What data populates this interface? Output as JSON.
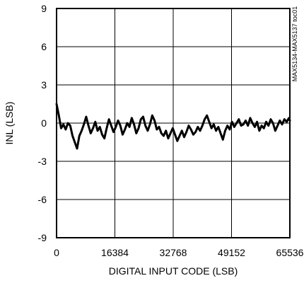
{
  "chart_data": {
    "type": "line",
    "title": "",
    "xlabel": "DIGITAL INPUT CODE (LSB)",
    "ylabel": "INL (LSB)",
    "side_label": "MAX5134-MAX5137 toc01",
    "xlim": [
      0,
      65536
    ],
    "ylim": [
      -9,
      9
    ],
    "x_ticks": [
      0,
      16384,
      32768,
      49152,
      65536
    ],
    "x_tick_labels": [
      "0",
      "16384",
      "32768",
      "49152",
      "65536"
    ],
    "y_ticks": [
      9,
      6,
      3,
      0,
      -3,
      -6,
      -9
    ],
    "y_tick_labels": [
      "9",
      "6",
      "3",
      "0",
      "-3",
      "-6",
      "-9"
    ],
    "grid": true,
    "line_color": "#000000",
    "grid_color": "#000000",
    "series": [
      {
        "x": [
          0,
          640,
          1280,
          1920,
          2560,
          3200,
          3840,
          4480,
          5120,
          5760,
          6400,
          7040,
          7680,
          8320,
          8960,
          9600,
          10240,
          10880,
          11520,
          12160,
          12800,
          13440,
          14080,
          14720,
          15360,
          16000,
          16640,
          17280,
          17920,
          18560,
          19200,
          19840,
          20480,
          21120,
          21760,
          22400,
          23040,
          23680,
          24320,
          24960,
          25600,
          26240,
          26880,
          27520,
          28160,
          28800,
          29440,
          30080,
          30720,
          31360,
          32000,
          32640,
          33280,
          33920,
          34560,
          35200,
          35840,
          36480,
          37120,
          37760,
          38400,
          39040,
          39680,
          40320,
          40960,
          41600,
          42240,
          42880,
          43520,
          44160,
          44800,
          45440,
          46080,
          46720,
          47360,
          48000,
          48640,
          49280,
          49920,
          50560,
          51200,
          51840,
          52480,
          53120,
          53760,
          54400,
          55040,
          55680,
          56320,
          56960,
          57600,
          58240,
          58880,
          59520,
          60160,
          60800,
          61440,
          62080,
          62720,
          63360,
          64000,
          64640,
          65280,
          65536
        ],
        "values": [
          1.5,
          0.6,
          -0.4,
          -0.1,
          -0.5,
          0.0,
          -0.2,
          -1.0,
          -1.5,
          -2.0,
          -1.0,
          -0.6,
          -0.1,
          0.5,
          -0.2,
          -0.8,
          -0.4,
          0.1,
          -0.6,
          -0.3,
          -0.9,
          -1.2,
          -0.4,
          0.3,
          -0.2,
          -0.7,
          -0.3,
          0.2,
          -0.2,
          -0.9,
          -0.5,
          0.0,
          -0.3,
          0.4,
          -0.1,
          -0.8,
          -0.4,
          0.3,
          0.5,
          -0.2,
          -0.6,
          -0.1,
          0.6,
          0.2,
          -0.5,
          -0.3,
          -0.8,
          -1.0,
          -0.6,
          -1.2,
          -0.8,
          -0.4,
          -0.9,
          -1.4,
          -1.0,
          -0.6,
          -1.1,
          -0.7,
          -0.2,
          -0.5,
          -0.9,
          -0.7,
          -0.3,
          -0.6,
          -0.2,
          0.3,
          0.6,
          0.1,
          -0.4,
          -0.1,
          -0.6,
          -0.3,
          -0.8,
          -1.3,
          -0.6,
          -0.2,
          -0.5,
          0.1,
          -0.3,
          0.0,
          0.3,
          -0.2,
          -0.1,
          0.2,
          -0.2,
          0.4,
          0.0,
          -0.3,
          0.1,
          -0.6,
          -0.2,
          -0.4,
          0.1,
          -0.2,
          0.3,
          0.0,
          -0.6,
          -0.2,
          0.2,
          -0.1,
          0.3,
          0.1,
          0.4,
          0.2
        ]
      }
    ]
  }
}
